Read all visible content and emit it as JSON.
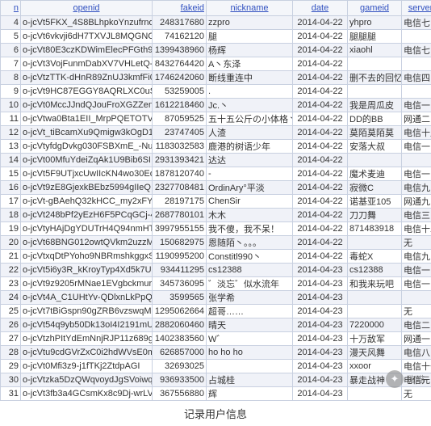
{
  "columns": [
    "n",
    "openid",
    "fakeid",
    "nickname",
    "date",
    "gameid",
    "server",
    "rank"
  ],
  "col_classes": [
    "c-n",
    "c-openid",
    "c-fakeid",
    "c-nickname",
    "c-date",
    "c-gameid",
    "c-server",
    "c-rank"
  ],
  "rows": [
    [
      "4",
      "o-jcVt5FKX_4S8BLhpkoYnzufrno",
      "248317680",
      "zzpro",
      "2014-04-22",
      "yhpro",
      "电信七",
      ""
    ],
    [
      "5",
      "o-jcVt6vkvji6dH7TXVJL8MQGNGo",
      "74162120",
      "腿",
      "2014-04-22",
      "腿腿腿",
      "",
      ""
    ],
    [
      "6",
      "o-jcVt80E3czKDWimElecPFGth9dI",
      "1399438960",
      "杨辉",
      "2014-04-22",
      "xiaohl",
      "电信七",
      ""
    ],
    [
      "7",
      "o-jcVt3VojFunmDabXV7VHLetQ-Q",
      "8432764420",
      "A丶东泽",
      "2014-04-22",
      "",
      "",
      ""
    ],
    [
      "8",
      "o-jcVtzTTK-dHnR89ZnUJ3kmfFi0w",
      "1746242060",
      "断线重连中",
      "2014-04-22",
      "删不去的回忆",
      "电信四",
      ""
    ],
    [
      "9",
      "o-jcVt9HC87EGGY8AQRLXC0uS3Dc",
      "53259005",
      ".",
      "2014-04-22",
      "",
      "",
      ""
    ],
    [
      "10",
      "o-jcVt0MccJJndQJouFroXGZZen8",
      "1612218460",
      "Jc.丶",
      "2014-04-22",
      "我是周瓜皮",
      "电信一",
      ""
    ],
    [
      "11",
      "o-jcVtwa0Bta1EII_MrpPQETOTVM",
      "87059525",
      "五十五公斤の小体格丶",
      "2014-04-22",
      "DD的BB",
      "网通二",
      ""
    ],
    [
      "12",
      "o-jcVt_tiBcamXu9Qmigw3kOgD1",
      "23747405",
      "人渣",
      "2014-04-22",
      "莫陌莫陌莫",
      "电信十八",
      ""
    ],
    [
      "13",
      "o-jcVtyfdgDvkg030FSBXmE_-NuE",
      "1183032583",
      "鹿港的树语少年",
      "2014-04-22",
      "安落大叔",
      "电信一",
      ""
    ],
    [
      "14",
      "o-jcVt00MfuYdeiZqAk1U9Bib6SI",
      "2931393421",
      "达达",
      "2014-04-22",
      "",
      "",
      ""
    ],
    [
      "15",
      "o-jcVt5F9UTjxcUwIIcKN4wo30Eo",
      "1878120740",
      "-",
      "2014-04-22",
      "魔术麦迪",
      "电信一",
      ""
    ],
    [
      "16",
      "o-jcVt9zE8GjexkBEbz5994gIIeQ",
      "2327708481",
      "OrdinAry°平淡",
      "2014-04-22",
      "寂微C",
      "电信九",
      ""
    ],
    [
      "17",
      "o-jcVt-gBAehQ32kHCC_my2xFYfY",
      "28197175",
      "ChenSir",
      "2014-04-22",
      "诺基亚105",
      "网通九",
      ""
    ],
    [
      "18",
      "o-jcVt248bPf2yEzH6F5PCqGCj-4",
      "2687780101",
      "木木",
      "2014-04-22",
      "刀刀舞",
      "电信三",
      ""
    ],
    [
      "19",
      "o-jcVtyHAjDgYDUTrH4Q94nmHTPo",
      "3997955155",
      "我不傻，我不呆！",
      "2014-04-22",
      "871483918",
      "电信十二",
      ""
    ],
    [
      "20",
      "o-jcVt68BNG012owtQVkm2uzzMH8",
      "150682975",
      "恩随陌丶。。。",
      "2014-04-22",
      "",
      "无",
      ""
    ],
    [
      "21",
      "o-jcVtxqDtPYoho9NBRmshkggxSU",
      "1190995200",
      "Constitl990丶",
      "2014-04-22",
      "毒蛇X",
      "电信九",
      ""
    ],
    [
      "22",
      "o-jcVt5i6y3R_kKroyTyp4Xd5k7U",
      "934411295",
      "cs12388",
      "2014-04-23",
      "cs12388",
      "电信一",
      ""
    ],
    [
      "23",
      "o-jcVt9z9205rMNae1EVgbckmurc",
      "345736095",
      "゛淡忘゛似水流年",
      "2014-04-23",
      "和我来玩吧",
      "电信一",
      ""
    ],
    [
      "24",
      "o-jcVt4A_C1UHtYv-QDlxnLkPpQg",
      "3599565",
      "张学希",
      "2014-04-23",
      "",
      "",
      ""
    ],
    [
      "25",
      "o-jcVt7tBiGspn90gZRB6vzswqMQ",
      "1295062664",
      "超哥……",
      "2014-04-23",
      "",
      "无",
      ""
    ],
    [
      "26",
      "o-jcVt54q9yb50Dk13oI4I2191mU",
      "2882060460",
      "晴天",
      "2014-04-23",
      "7220000",
      "电信二",
      ""
    ],
    [
      "27",
      "o-jcVtzhPItYdEmNnjRJP11z689g",
      "1402383560",
      "W゛",
      "2014-04-23",
      "十万敌军",
      "网通一",
      ""
    ],
    [
      "28",
      "o-jcVtu9cdGVrZxC0i2hdWVsE0m48",
      "626857000",
      "ho ho ho",
      "2014-04-23",
      "漫天风舞",
      "电信八",
      ""
    ],
    [
      "29",
      "o-jcVt0Mfi3z9-j1fTKj2ZtdpAGI",
      "32693025",
      "",
      "2014-04-23",
      "xxoor",
      "电信十七",
      ""
    ],
    [
      "30",
      "o-jcVtzka5DzQWqvoydJgSVoiwqs",
      "936933500",
      "占城桂",
      "2014-04-23",
      "暴走战神",
      "电信元",
      ""
    ],
    [
      "31",
      "o-jcVt3fb3a4GCsmKx8c9Dj-wrLVs",
      "367556880",
      "辉",
      "2014-04-23",
      "",
      "无",
      ""
    ]
  ],
  "caption": "记录用户信息",
  "watermark": "嗨喵",
  "styling": {
    "header_bg": "#f4f6fa",
    "header_color": "#3050c0",
    "border_color": "#c8d0e0",
    "alt_row_bg": "#f0f2f8",
    "font_size": 11
  }
}
